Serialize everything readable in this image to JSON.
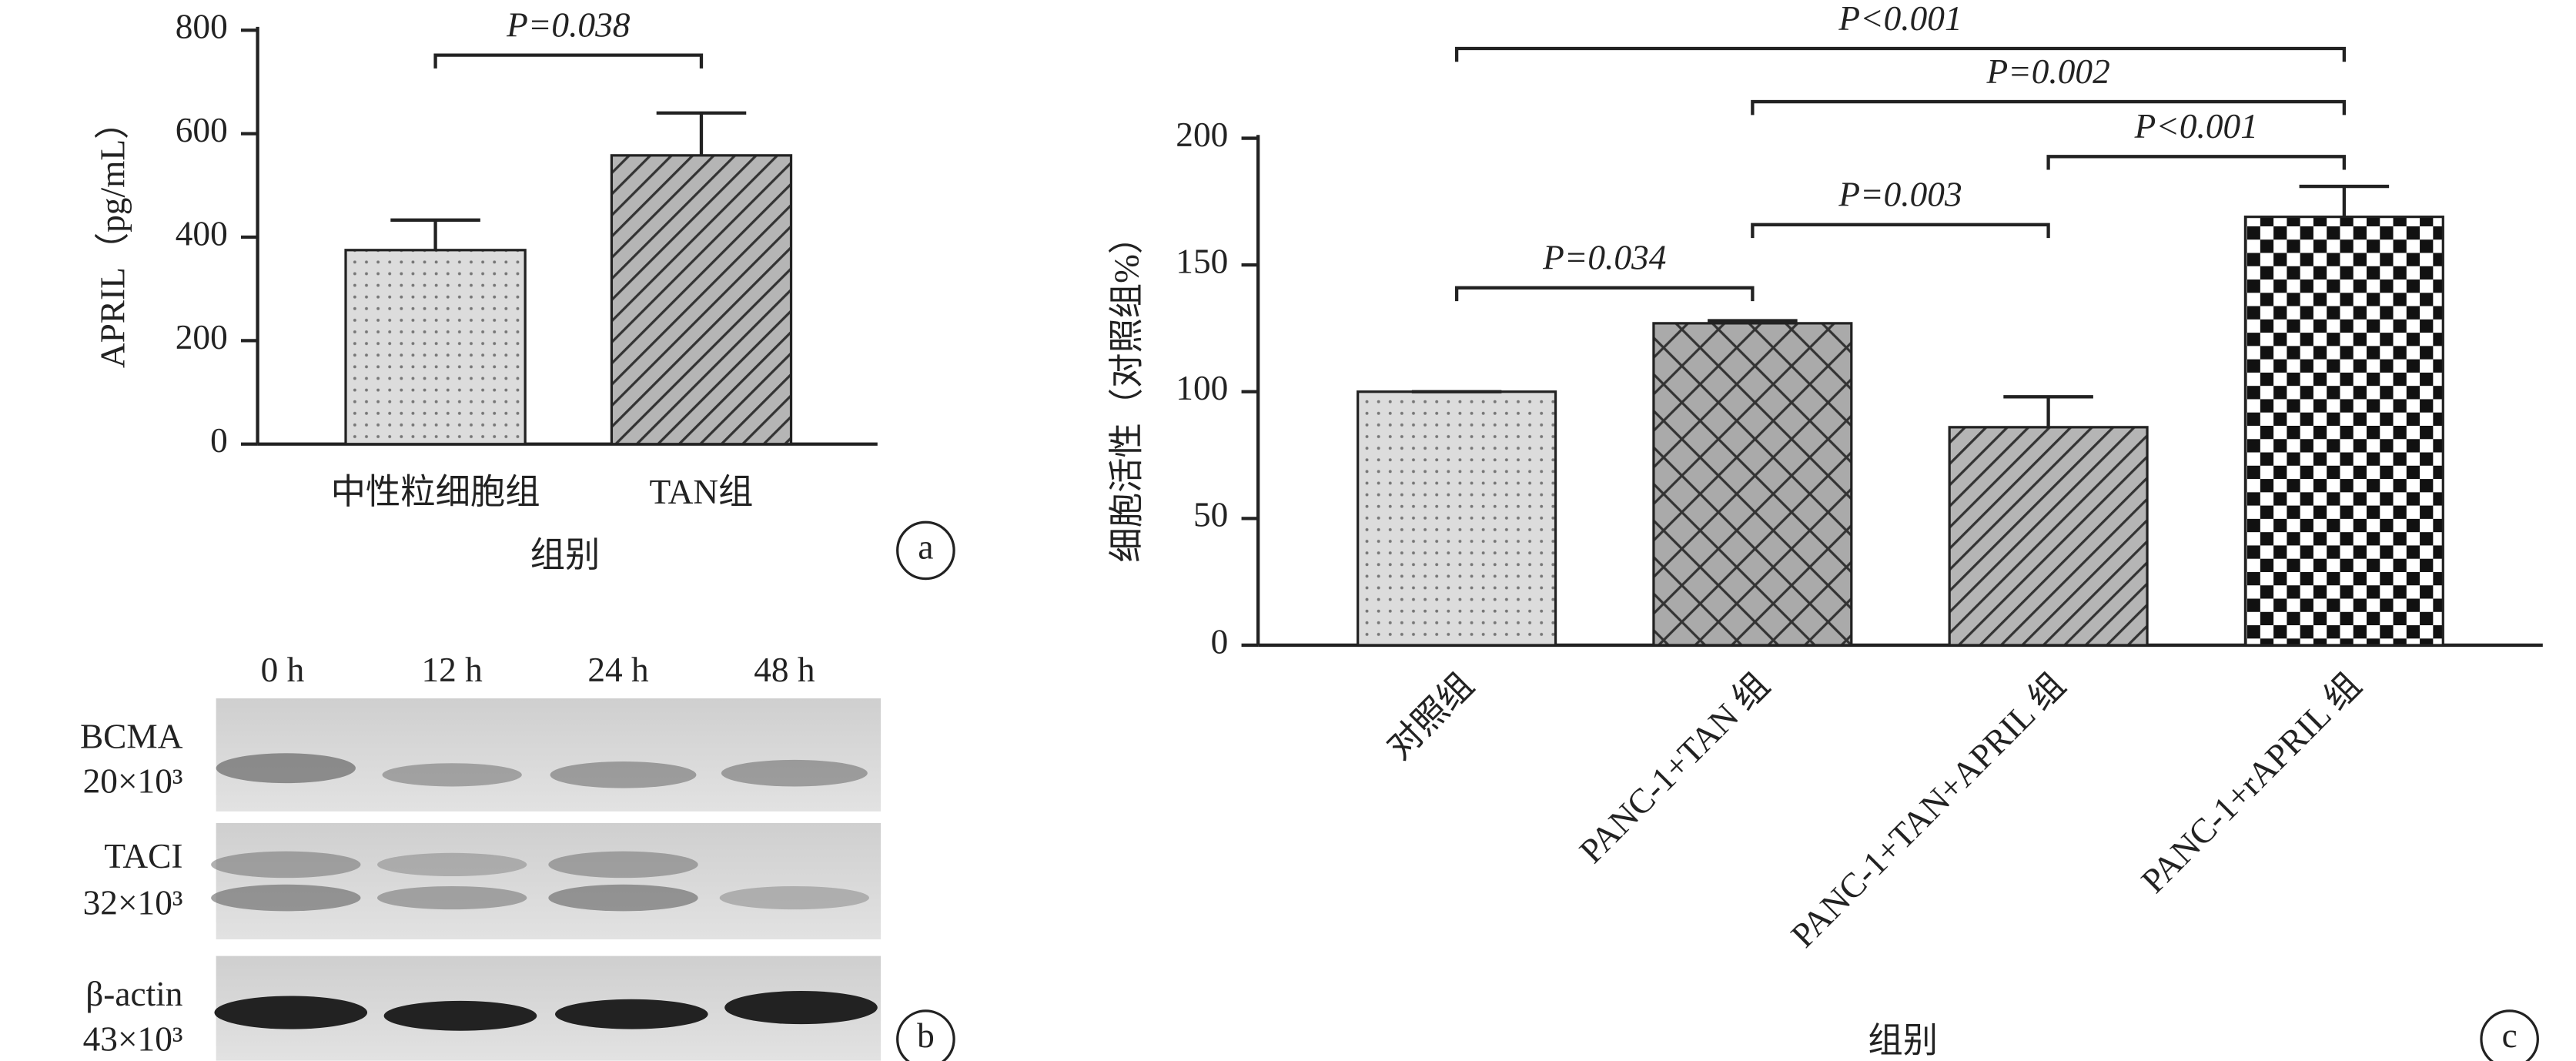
{
  "chart_data": [
    {
      "type": "bar",
      "panel": "a",
      "y_label": "APRIL（pg/mL）",
      "x_label": "组别",
      "categories": [
        "中性粒细胞组",
        "TAN组"
      ],
      "values": [
        375,
        558
      ],
      "errors": [
        58,
        82
      ],
      "patterns": [
        "dots",
        "hatch"
      ],
      "ylim": [
        0,
        800
      ],
      "yticks": [
        0,
        200,
        400,
        600,
        800
      ],
      "comparisons": [
        {
          "label": "P=0.038",
          "pair": [
            0,
            1
          ]
        }
      ]
    },
    {
      "type": "bar",
      "panel": "c",
      "y_label": "细胞活性（对照组%）",
      "x_label": "组别",
      "categories": [
        "对照组",
        "PANC-1+TAN 组",
        "PANC-1+TAN+APRIL 组",
        "PANC-1+rAPRIL 组"
      ],
      "values": [
        100,
        127,
        86,
        169
      ],
      "errors": [
        0,
        1,
        12,
        12
      ],
      "patterns": [
        "dots",
        "crosshatch",
        "hatch",
        "checker"
      ],
      "ylim": [
        0,
        200
      ],
      "yticks": [
        0,
        50,
        100,
        150,
        200
      ],
      "comparisons": [
        {
          "label": "P=0.034",
          "pair": [
            0,
            1
          ]
        },
        {
          "label": "P=0.003",
          "pair": [
            1,
            2
          ]
        },
        {
          "label": "P<0.001",
          "pair": [
            2,
            3
          ]
        },
        {
          "label": "P=0.002",
          "pair": [
            1,
            3
          ]
        },
        {
          "label": "P<0.001",
          "pair": [
            0,
            3
          ]
        }
      ]
    }
  ],
  "blot": {
    "panel": "b",
    "columns": [
      "0 h",
      "12 h",
      "24 h",
      "48 h"
    ],
    "rows": [
      {
        "name": "BCMA",
        "size": "20×10³"
      },
      {
        "name": "TACI",
        "size": "32×10³"
      },
      {
        "name": "β-actin",
        "size": "43×10³"
      }
    ]
  }
}
